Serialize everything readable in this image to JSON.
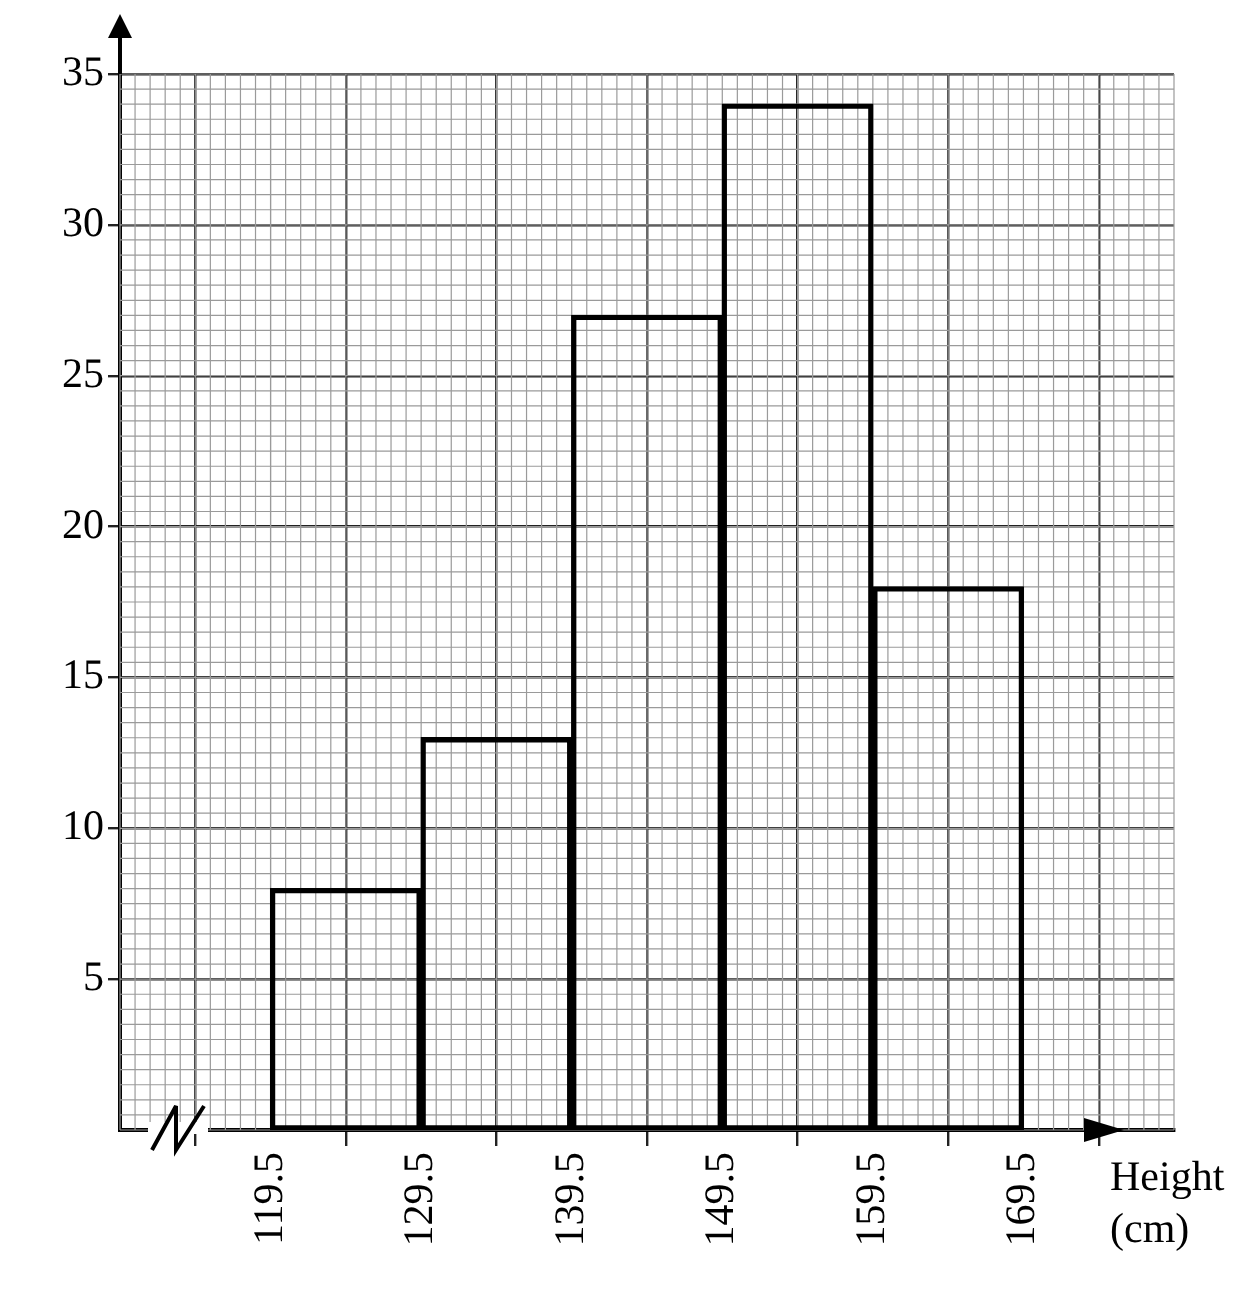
{
  "chart_data": {
    "type": "histogram",
    "xlabel": "Height (cm)",
    "bins": [
      119.5,
      129.5,
      139.5,
      149.5,
      159.5,
      169.5
    ],
    "values": [
      8,
      13,
      27,
      34,
      18
    ],
    "color": "#000000",
    "xlim": [
      109.5,
      179.5
    ],
    "xticks": [
      119.5,
      129.5,
      139.5,
      149.5,
      159.5,
      169.5
    ],
    "ylim": [
      0,
      35
    ],
    "yticks": [
      5,
      10,
      15,
      20,
      25,
      30,
      35
    ],
    "grid": true
  }
}
